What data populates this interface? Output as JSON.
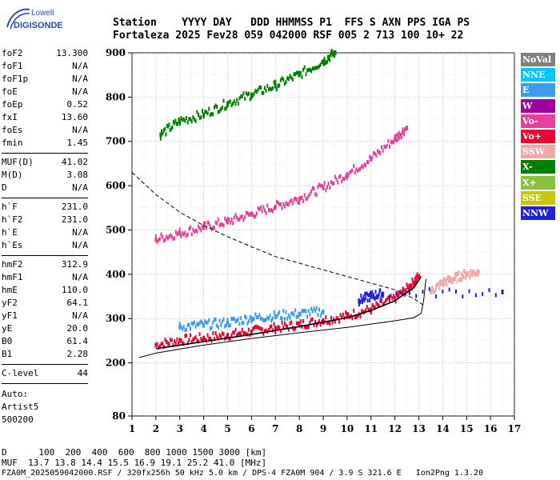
{
  "logo": {
    "top": "Lowell",
    "bottom": "DIGISONDE"
  },
  "header": {
    "labels": "Station    YYYY DAY   DDD HHMMSS P1  FFS S AXN PPS IGA PS",
    "values": "Fortaleza 2025 Fev28 059 042000 RSF 005 2 713 100 10+ 22"
  },
  "params_group1": [
    {
      "k": "foF2",
      "v": "13.300"
    },
    {
      "k": "foF1",
      "v": "N/A"
    },
    {
      "k": "foF1p",
      "v": "N/A"
    },
    {
      "k": "foE",
      "v": "N/A"
    },
    {
      "k": "foEp",
      "v": "0.52"
    },
    {
      "k": "fxI",
      "v": "13.60"
    },
    {
      "k": "foEs",
      "v": "N/A"
    },
    {
      "k": "fmin",
      "v": "1.45"
    }
  ],
  "params_group2": [
    {
      "k": "MUF(D)",
      "v": "41.02"
    },
    {
      "k": "M(D)",
      "v": "3.08"
    },
    {
      "k": "D",
      "v": "N/A"
    }
  ],
  "params_group3": [
    {
      "k": "h`F",
      "v": "231.0"
    },
    {
      "k": "h`F2",
      "v": "231.0"
    },
    {
      "k": "h`E",
      "v": "N/A"
    },
    {
      "k": "h`Es",
      "v": "N/A"
    }
  ],
  "params_group4": [
    {
      "k": "hmF2",
      "v": "312.9"
    },
    {
      "k": "hmF1",
      "v": "N/A"
    },
    {
      "k": "hmE",
      "v": "110.0"
    },
    {
      "k": "yF2",
      "v": "64.1"
    },
    {
      "k": "yF1",
      "v": "N/A"
    },
    {
      "k": "yE",
      "v": "20.0"
    },
    {
      "k": "B0",
      "v": "61.4"
    },
    {
      "k": "B1",
      "v": "2.28"
    }
  ],
  "clevel": {
    "k": "C-level",
    "v": "44"
  },
  "auto": {
    "line1": "Auto:",
    "line2": "Artist5",
    "line3": "500200"
  },
  "legend": [
    {
      "label": "NoVal",
      "color": "#808080"
    },
    {
      "label": "NNE",
      "color": "#00c8ff"
    },
    {
      "label": "E",
      "color": "#3c9cf0"
    },
    {
      "label": "W",
      "color": "#a000a0"
    },
    {
      "label": "Vo-",
      "color": "#e8409a"
    },
    {
      "label": "Vo+",
      "color": "#f00030"
    },
    {
      "label": "SSW",
      "color": "#f0a8a8"
    },
    {
      "label": "X-",
      "color": "#008000"
    },
    {
      "label": "X+",
      "color": "#88c040"
    },
    {
      "label": "SSE",
      "color": "#c8c800"
    },
    {
      "label": "NNW",
      "color": "#2020e0"
    }
  ],
  "footer": {
    "line1": "D      100  200  400  600  800 1000 1500 3000 [km]",
    "line2": "MUF  13.7 13.8 14.4 15.5 16.9 19.1 25.2 41.0 [MHz]",
    "line3": "FZA0M_2025059042000.RSF / 320fx256h 50 kHz 5.0 km / DPS-4 FZA0M 904 / 3.9 S 321.6 E   Ion2Png 1.3.20"
  },
  "chart_data": {
    "type": "scatter",
    "xlim": [
      1,
      17
    ],
    "ylim": [
      80,
      900
    ],
    "x_ticks": [
      1,
      2,
      3,
      4,
      5,
      6,
      7,
      8,
      9,
      10,
      11,
      12,
      13,
      14,
      15,
      16,
      17
    ],
    "y_ticks": [
      80,
      200,
      300,
      400,
      500,
      600,
      700,
      800,
      900
    ],
    "grid": "dotted",
    "legend_position": "right",
    "series": [
      {
        "name": "Vo+",
        "color": "#f00030",
        "points": [
          [
            2.0,
            240
          ],
          [
            3.0,
            250
          ],
          [
            4.0,
            255
          ],
          [
            5.0,
            262
          ],
          [
            6.0,
            270
          ],
          [
            7.0,
            278
          ],
          [
            8.0,
            285
          ],
          [
            9.0,
            295
          ],
          [
            10.0,
            305
          ],
          [
            11.0,
            320
          ],
          [
            12.0,
            345
          ],
          [
            12.6,
            370
          ],
          [
            13.0,
            395
          ]
        ]
      },
      {
        "name": "Vo-",
        "color": "#e8409a",
        "points": [
          [
            2.0,
            478
          ],
          [
            3.0,
            492
          ],
          [
            4.0,
            505
          ],
          [
            5.0,
            518
          ],
          [
            6.0,
            535
          ],
          [
            7.0,
            552
          ],
          [
            8.0,
            570
          ],
          [
            9.0,
            595
          ],
          [
            10.0,
            625
          ],
          [
            11.0,
            660
          ],
          [
            12.0,
            705
          ],
          [
            12.5,
            730
          ]
        ]
      },
      {
        "name": "X-",
        "color": "#008000",
        "points": [
          [
            2.2,
            715
          ],
          [
            3.0,
            745
          ],
          [
            4.0,
            760
          ],
          [
            5.0,
            785
          ],
          [
            6.0,
            805
          ],
          [
            7.0,
            825
          ],
          [
            8.0,
            850
          ],
          [
            9.0,
            880
          ],
          [
            9.5,
            900
          ]
        ]
      },
      {
        "name": "E",
        "color": "#3c9cf0",
        "points": [
          [
            3.0,
            280
          ],
          [
            4.0,
            285
          ],
          [
            5.0,
            290
          ],
          [
            6.0,
            300
          ],
          [
            7.0,
            305
          ],
          [
            8.0,
            310
          ],
          [
            9.0,
            315
          ]
        ]
      },
      {
        "name": "SSW",
        "color": "#f0a8a8",
        "points": [
          [
            13.5,
            360
          ],
          [
            14.0,
            380
          ],
          [
            14.5,
            390
          ],
          [
            15.0,
            400
          ],
          [
            15.5,
            405
          ]
        ]
      },
      {
        "name": "NNW",
        "color": "#2020e0",
        "points": [
          [
            10.5,
            340
          ],
          [
            11.0,
            350
          ],
          [
            11.5,
            355
          ],
          [
            16.5,
            360
          ]
        ]
      }
    ],
    "profile_lines": {
      "solid_trace": [
        [
          1.3,
          212
        ],
        [
          2.0,
          222
        ],
        [
          4.0,
          240
        ],
        [
          6.0,
          255
        ],
        [
          8.0,
          268
        ],
        [
          10.0,
          280
        ],
        [
          12.0,
          295
        ],
        [
          12.8,
          302
        ],
        [
          13.1,
          312
        ],
        [
          13.2,
          340
        ],
        [
          13.3,
          390
        ]
      ],
      "dashed_profile": [
        [
          1.0,
          630
        ],
        [
          2.0,
          580
        ],
        [
          3.0,
          540
        ],
        [
          4.0,
          510
        ],
        [
          5.0,
          485
        ],
        [
          6.0,
          462
        ],
        [
          7.0,
          440
        ],
        [
          8.0,
          425
        ],
        [
          9.0,
          410
        ],
        [
          10.0,
          395
        ],
        [
          11.0,
          380
        ],
        [
          12.0,
          365
        ],
        [
          12.8,
          345
        ],
        [
          13.2,
          330
        ]
      ],
      "black_fit": [
        [
          2.0,
          232
        ],
        [
          3.0,
          240
        ],
        [
          4.0,
          248
        ],
        [
          5.0,
          256
        ],
        [
          6.0,
          264
        ],
        [
          7.0,
          273
        ],
        [
          8.0,
          282
        ],
        [
          9.0,
          292
        ],
        [
          10.0,
          302
        ],
        [
          11.0,
          318
        ],
        [
          12.0,
          340
        ],
        [
          12.8,
          370
        ],
        [
          13.1,
          395
        ]
      ]
    }
  }
}
